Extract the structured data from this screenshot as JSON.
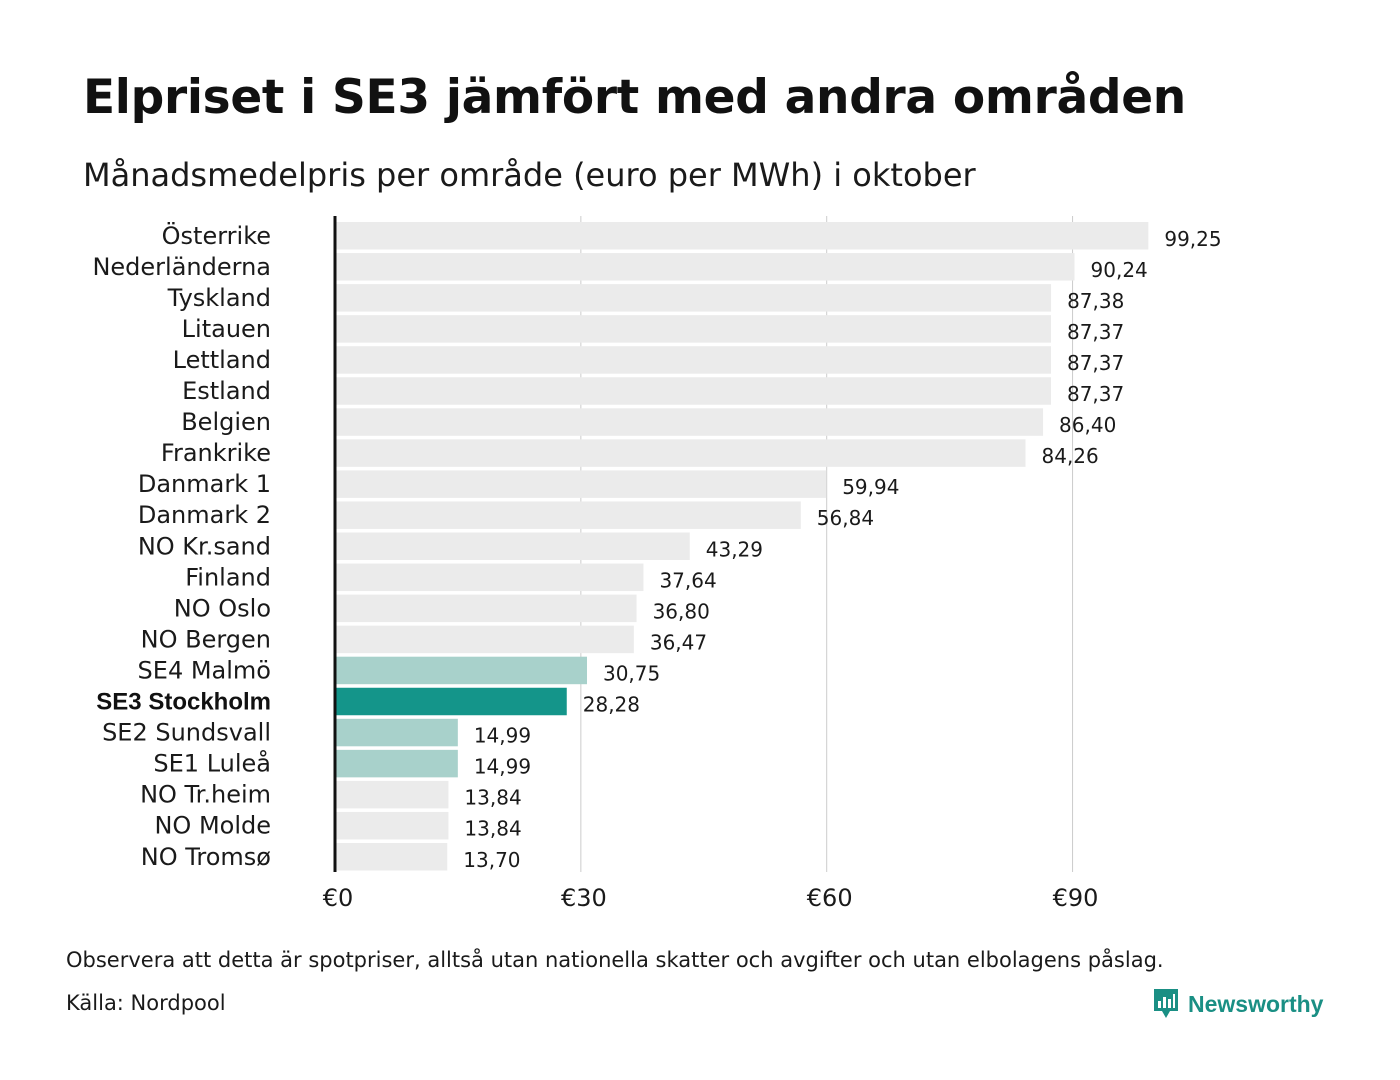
{
  "header": {
    "title": "Elpriset i SE3 jämfört med andra områden",
    "subtitle": "Månadsmedelpris per område (euro per MWh) i oktober"
  },
  "footer": {
    "note": "Observera att detta är spotpriser, alltså utan nationella skatter och avgifter och utan elbolagens påslag.",
    "source": "Källa: Nordpool",
    "brand": "Newsworthy",
    "brand_icon": "newsworthy-logo-icon"
  },
  "colors": {
    "bar_default": "#ebebeb",
    "bar_se_other": "#a8d1cb",
    "bar_highlight": "#14958a",
    "grid": "#cccccc",
    "axis": "#111111",
    "brand": "#1a8f84"
  },
  "chart_data": {
    "type": "bar",
    "orientation": "horizontal",
    "title": "Elpriset i SE3 jämfört med andra områden",
    "subtitle": "Månadsmedelpris per område (euro per MWh) i oktober",
    "xlim": [
      0,
      100
    ],
    "x_ticks": [
      0,
      30,
      60,
      90
    ],
    "x_tick_labels": [
      "€0",
      "€30",
      "€60",
      "€90"
    ],
    "grid": true,
    "categories": [
      "Österrike",
      "Nederländerna",
      "Tyskland",
      "Litauen",
      "Lettland",
      "Estland",
      "Belgien",
      "Frankrike",
      "Danmark  1",
      "Danmark  2",
      "NO Kr.sand",
      "Finland",
      "NO Oslo",
      "NO Bergen",
      "SE4  Malmö",
      "SE3 Stockholm",
      "SE2  Sundsvall",
      "SE1  Luleå",
      "NO Tr.heim",
      "NO Molde",
      "NO Tromsø"
    ],
    "values": [
      99.25,
      90.24,
      87.38,
      87.37,
      87.37,
      87.37,
      86.4,
      84.26,
      59.94,
      56.84,
      43.29,
      37.64,
      36.8,
      36.47,
      30.75,
      28.28,
      14.99,
      14.99,
      13.84,
      13.84,
      13.7
    ],
    "value_labels": [
      "99,25",
      "90,24",
      "87,38",
      "87,37",
      "87,37",
      "87,37",
      "86,40",
      "84,26",
      "59,94",
      "56,84",
      "43,29",
      "37,64",
      "36,80",
      "36,47",
      "30,75",
      "28,28",
      "14,99",
      "14,99",
      "13,84",
      "13,84",
      "13,70"
    ],
    "bar_groups": [
      "other",
      "other",
      "other",
      "other",
      "other",
      "other",
      "other",
      "other",
      "other",
      "other",
      "other",
      "other",
      "other",
      "other",
      "se",
      "highlight",
      "se",
      "se",
      "other",
      "other",
      "other"
    ]
  }
}
